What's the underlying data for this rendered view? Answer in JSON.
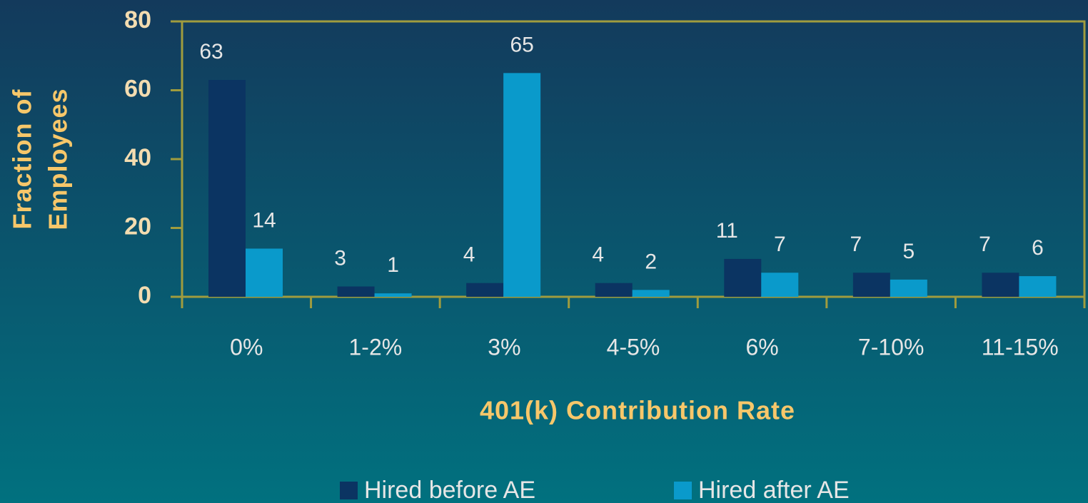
{
  "chart_data": {
    "type": "bar",
    "xlabel": "401(k) Contribution Rate",
    "ylabel": [
      "Fraction of",
      "Employees"
    ],
    "categories": [
      "0%",
      "1-2%",
      "3%",
      "4-5%",
      "6%",
      "7-10%",
      "11-15%"
    ],
    "series": [
      {
        "name": "Hired before AE",
        "color": "#0b3462",
        "values": [
          63,
          3,
          4,
          4,
          11,
          7,
          7
        ]
      },
      {
        "name": "Hired after AE",
        "color": "#0a9acb",
        "values": [
          14,
          1,
          65,
          2,
          7,
          5,
          6
        ]
      }
    ],
    "ylim": [
      0,
      80
    ],
    "yticks": [
      0,
      20,
      40,
      60,
      80
    ]
  }
}
